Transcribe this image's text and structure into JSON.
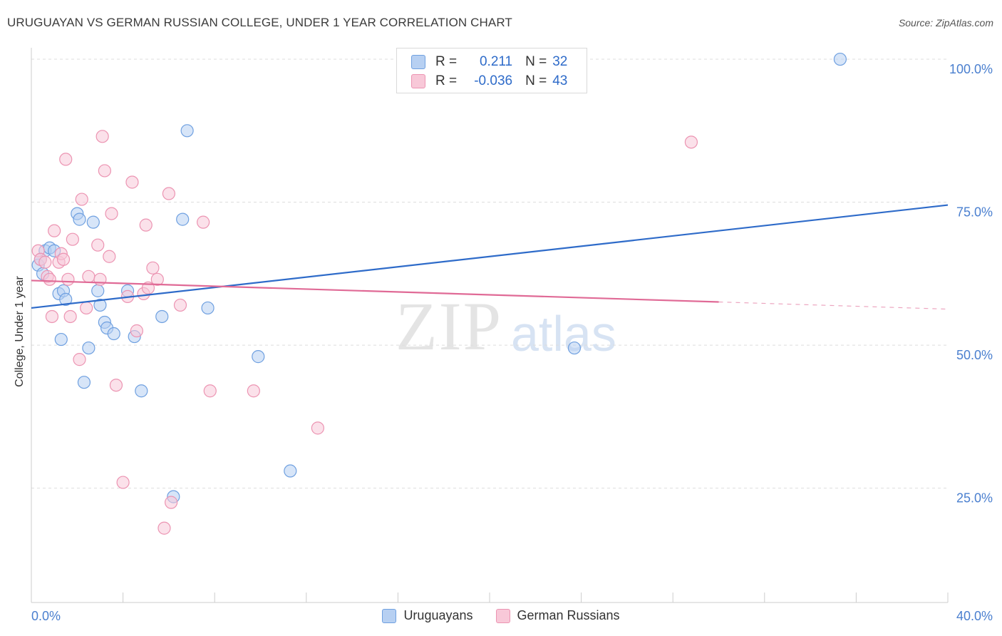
{
  "title": "URUGUAYAN VS GERMAN RUSSIAN COLLEGE, UNDER 1 YEAR CORRELATION CHART",
  "source": "Source: ZipAtlas.com",
  "watermark": {
    "part1": "ZIP",
    "part2": "atlas"
  },
  "colors": {
    "blue": "#6fa0e0",
    "blue_fill": "#b7d0f2",
    "blue_line": "#2e6bc9",
    "pink": "#ec94b2",
    "pink_fill": "#f8c8d8",
    "pink_line": "#e06a96",
    "tick_label": "#4a7fcf",
    "grid": "#dddddd"
  },
  "legend": {
    "rows": [
      {
        "r_label": "R =",
        "r_value": "0.211",
        "n_label": "N =",
        "n_value": "32",
        "series": "Uruguayans"
      },
      {
        "r_label": "R =",
        "r_value": "-0.036",
        "n_label": "N =",
        "n_value": "43",
        "series": "German Russians"
      }
    ]
  },
  "chart_data": {
    "type": "scatter",
    "title": "URUGUAYAN VS GERMAN RUSSIAN COLLEGE, UNDER 1 YEAR CORRELATION CHART",
    "xlabel": "",
    "ylabel": "College, Under 1 year",
    "xlim": [
      0,
      40
    ],
    "ylim": [
      5,
      102
    ],
    "x_tick_labels": [
      "0.0%",
      "40.0%"
    ],
    "y_ticks": [
      25,
      50,
      75,
      100
    ],
    "y_tick_labels": [
      "25.0%",
      "50.0%",
      "75.0%",
      "100.0%"
    ],
    "grid": true,
    "legend_position": "bottom",
    "series": [
      {
        "name": "Uruguayans",
        "color": "#6fa0e0",
        "trend": {
          "x": [
            0,
            40
          ],
          "y": [
            56.5,
            74.5
          ],
          "solid_until": 40
        },
        "points": [
          [
            0.3,
            64
          ],
          [
            0.5,
            62.5
          ],
          [
            0.6,
            66.5
          ],
          [
            0.8,
            67
          ],
          [
            1.0,
            66.5
          ],
          [
            0.4,
            65
          ],
          [
            1.2,
            59
          ],
          [
            1.4,
            59.5
          ],
          [
            1.5,
            58
          ],
          [
            1.3,
            51
          ],
          [
            2.0,
            73
          ],
          [
            2.1,
            72
          ],
          [
            2.7,
            71.5
          ],
          [
            2.9,
            59.5
          ],
          [
            3.0,
            57
          ],
          [
            3.2,
            54
          ],
          [
            3.3,
            53
          ],
          [
            3.6,
            52
          ],
          [
            4.2,
            59.5
          ],
          [
            4.5,
            51.5
          ],
          [
            4.8,
            42
          ],
          [
            5.7,
            55
          ],
          [
            6.6,
            72
          ],
          [
            6.8,
            87.5
          ],
          [
            7.7,
            56.5
          ],
          [
            9.9,
            48
          ],
          [
            11.3,
            28
          ],
          [
            2.5,
            49.5
          ],
          [
            2.3,
            43.5
          ],
          [
            6.2,
            23.5
          ],
          [
            23.7,
            49.5
          ],
          [
            35.3,
            100
          ]
        ]
      },
      {
        "name": "German Russians",
        "color": "#ec94b2",
        "trend": {
          "x": [
            0,
            40
          ],
          "y": [
            61.3,
            56.3
          ],
          "solid_until": 30
        },
        "points": [
          [
            0.3,
            66.5
          ],
          [
            0.4,
            65
          ],
          [
            0.6,
            64.5
          ],
          [
            0.7,
            62
          ],
          [
            0.8,
            61.5
          ],
          [
            0.9,
            55
          ],
          [
            1.0,
            70
          ],
          [
            1.2,
            64.5
          ],
          [
            1.3,
            66
          ],
          [
            1.5,
            82.5
          ],
          [
            1.6,
            61.5
          ],
          [
            1.7,
            55
          ],
          [
            1.8,
            68.5
          ],
          [
            2.1,
            47.5
          ],
          [
            2.2,
            75.5
          ],
          [
            2.4,
            56.5
          ],
          [
            2.5,
            62
          ],
          [
            2.9,
            67.5
          ],
          [
            3.0,
            61.5
          ],
          [
            3.1,
            86.5
          ],
          [
            3.2,
            80.5
          ],
          [
            3.4,
            65.5
          ],
          [
            3.5,
            73
          ],
          [
            3.7,
            43
          ],
          [
            4.0,
            26
          ],
          [
            4.2,
            58.5
          ],
          [
            4.4,
            78.5
          ],
          [
            4.6,
            52.5
          ],
          [
            4.9,
            59
          ],
          [
            5.0,
            71
          ],
          [
            5.1,
            60
          ],
          [
            5.3,
            63.5
          ],
          [
            5.5,
            61.5
          ],
          [
            5.8,
            18
          ],
          [
            6.0,
            76.5
          ],
          [
            6.1,
            22.5
          ],
          [
            6.5,
            57
          ],
          [
            7.5,
            71.5
          ],
          [
            7.8,
            42
          ],
          [
            9.7,
            42
          ],
          [
            12.5,
            35.5
          ],
          [
            28.8,
            85.5
          ],
          [
            1.4,
            65
          ]
        ]
      }
    ]
  },
  "bottom_legend": [
    {
      "label": "Uruguayans"
    },
    {
      "label": "German Russians"
    }
  ]
}
